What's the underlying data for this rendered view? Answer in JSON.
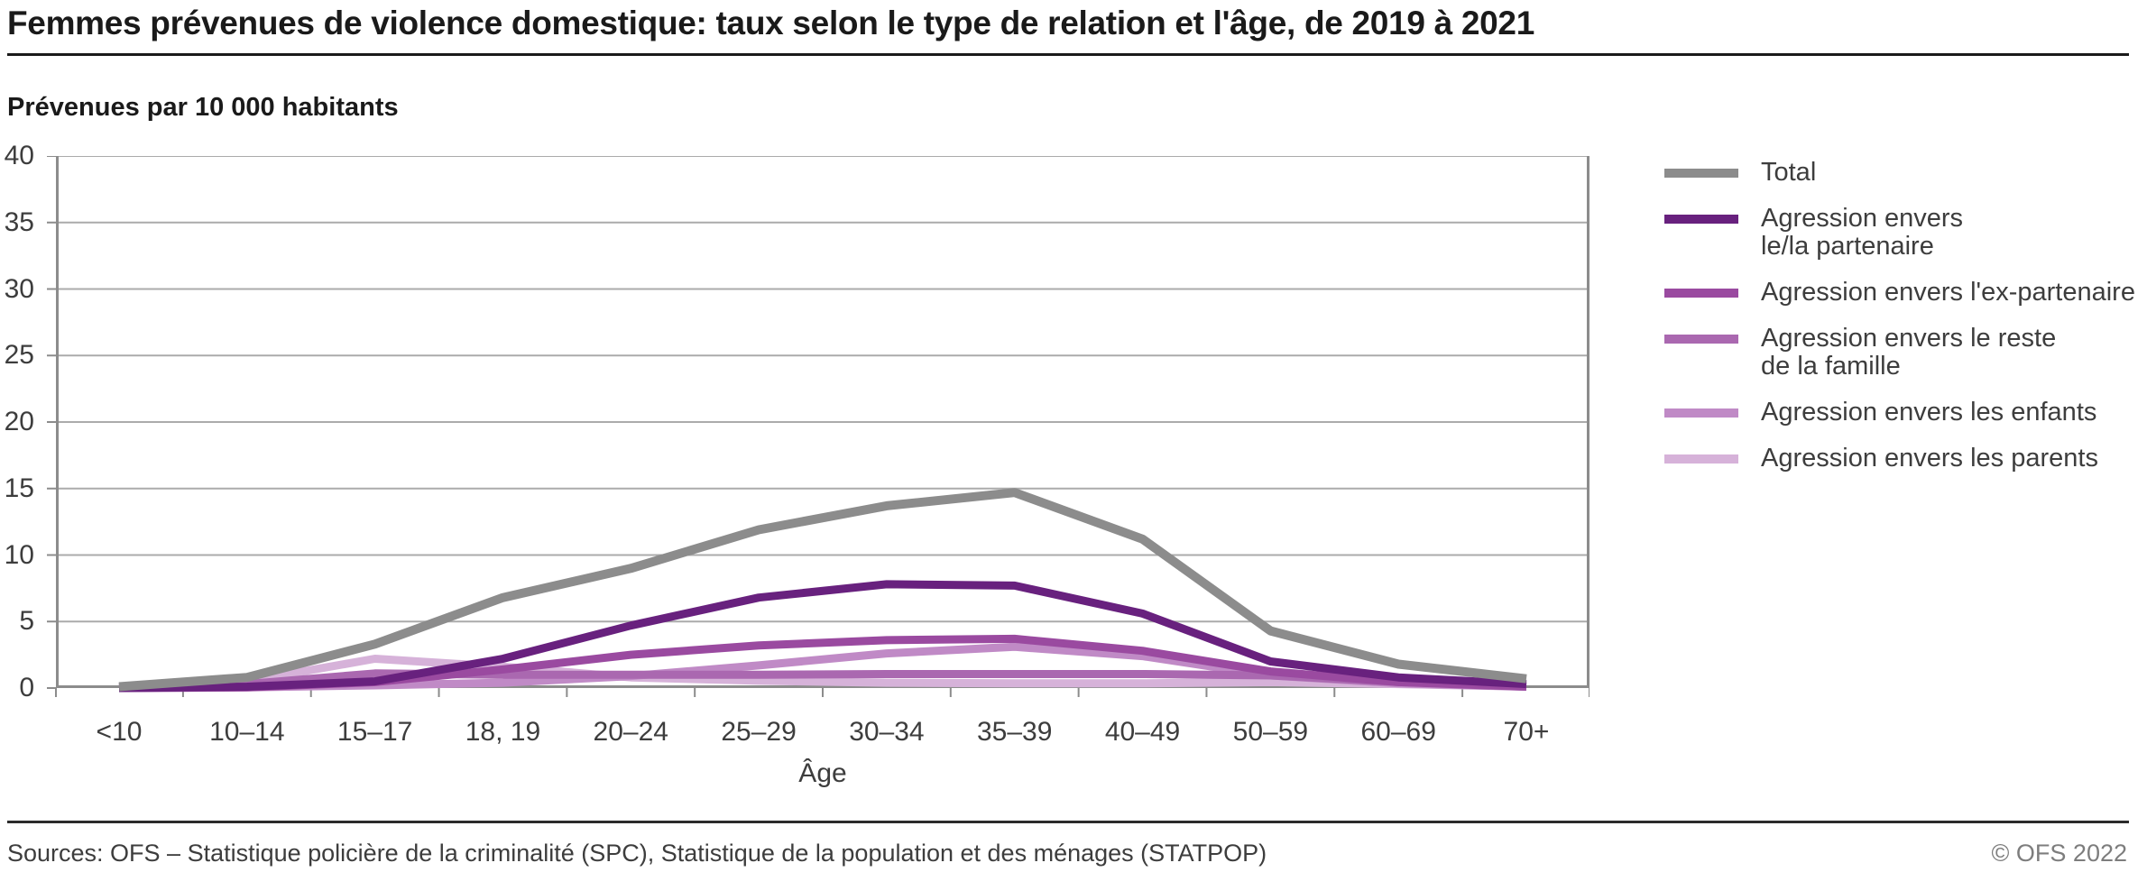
{
  "header": {
    "title": "Femmes prévenues de violence domestique: taux selon le type de relation et l'âge, de 2019 à 2021"
  },
  "chart_data": {
    "type": "line",
    "title": "Femmes prévenues de violence domestique: taux selon le type de relation et l'âge, de 2019 à 2021",
    "ylabel": "Prévenues par 10 000 habitants",
    "xlabel": "Âge",
    "ylim": [
      0,
      40
    ],
    "ytick_step": 5,
    "grid": true,
    "legend_position": "right",
    "categories": [
      "<10",
      "10–14",
      "15–17",
      "18, 19",
      "20–24",
      "25–29",
      "30–34",
      "35–39",
      "40–49",
      "50–59",
      "60–69",
      "70+"
    ],
    "series": [
      {
        "name": "Total",
        "label_lines": [
          "Total"
        ],
        "color": "#8c8c8c",
        "values": [
          0.1,
          0.8,
          3.3,
          6.8,
          9.0,
          11.9,
          13.7,
          14.7,
          11.2,
          4.3,
          1.8,
          0.7
        ]
      },
      {
        "name": "Agression envers le/la partenaire",
        "label_lines": [
          "Agression envers",
          "le/la partenaire"
        ],
        "color": "#68217e",
        "values": [
          0.0,
          0.1,
          0.5,
          2.2,
          4.7,
          6.8,
          7.8,
          7.7,
          5.6,
          2.0,
          0.8,
          0.3
        ]
      },
      {
        "name": "Agression envers l'ex-partenaire",
        "label_lines": [
          "Agression envers l'ex-partenaire"
        ],
        "color": "#9a4aa0",
        "values": [
          0.0,
          0.05,
          0.45,
          1.4,
          2.5,
          3.2,
          3.6,
          3.7,
          2.8,
          1.25,
          0.45,
          0.1
        ]
      },
      {
        "name": "Agression envers le reste de la famille",
        "label_lines": [
          "Agression envers le reste",
          "de la famille"
        ],
        "color": "#aa68b0",
        "values": [
          0.05,
          0.3,
          1.1,
          1.0,
          1.0,
          1.0,
          1.05,
          1.05,
          1.05,
          0.95,
          0.45,
          0.2
        ]
      },
      {
        "name": "Agression envers les enfants",
        "label_lines": [
          "Agression envers les enfants"
        ],
        "color": "#c08ac6",
        "values": [
          0.0,
          0.05,
          0.2,
          0.4,
          0.9,
          1.7,
          2.6,
          3.1,
          2.4,
          0.95,
          0.35,
          0.1
        ]
      },
      {
        "name": "Agression envers les parents",
        "label_lines": [
          "Agression envers les parents"
        ],
        "color": "#d6b2d9",
        "values": [
          0.05,
          0.5,
          2.2,
          1.6,
          0.8,
          0.55,
          0.4,
          0.35,
          0.35,
          0.45,
          0.3,
          0.1
        ]
      }
    ],
    "style": {
      "gridline_color": "#ababab",
      "axis_color": "#8c8c8c",
      "line_width": 9,
      "total_line_width": 10
    }
  },
  "footer": {
    "sources": "Sources: OFS – Statistique policière de la criminalité (SPC), Statistique de la population et des ménages (STATPOP)",
    "copyright": "© OFS 2022"
  }
}
